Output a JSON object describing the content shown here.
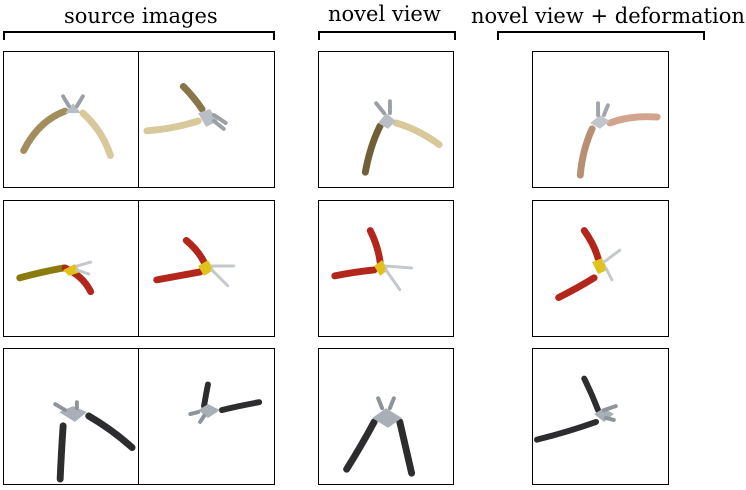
{
  "headers": {
    "source": "source images",
    "novel": "novel view",
    "deform": "novel view + deformation"
  },
  "palettes": {
    "tan": {
      "handle": "#cdbb86",
      "dark": "#8a7548",
      "metal": "#b9bec4"
    },
    "pink": {
      "handle": "#d2a48e",
      "dark": "#8f6446",
      "metal": "#c2c6cb"
    },
    "red": {
      "handle": "#b3261c",
      "accent": "#e0c21a",
      "metal": "#c4c8cc"
    },
    "black": {
      "handle": "#2d2d30",
      "metal": "#a9afb6"
    }
  },
  "rows": [
    {
      "name": "row-1",
      "object": "pliers-tan-handles"
    },
    {
      "name": "row-2",
      "object": "pliers-red-yellow-handles"
    },
    {
      "name": "row-3",
      "object": "pliers-black-handles"
    }
  ]
}
